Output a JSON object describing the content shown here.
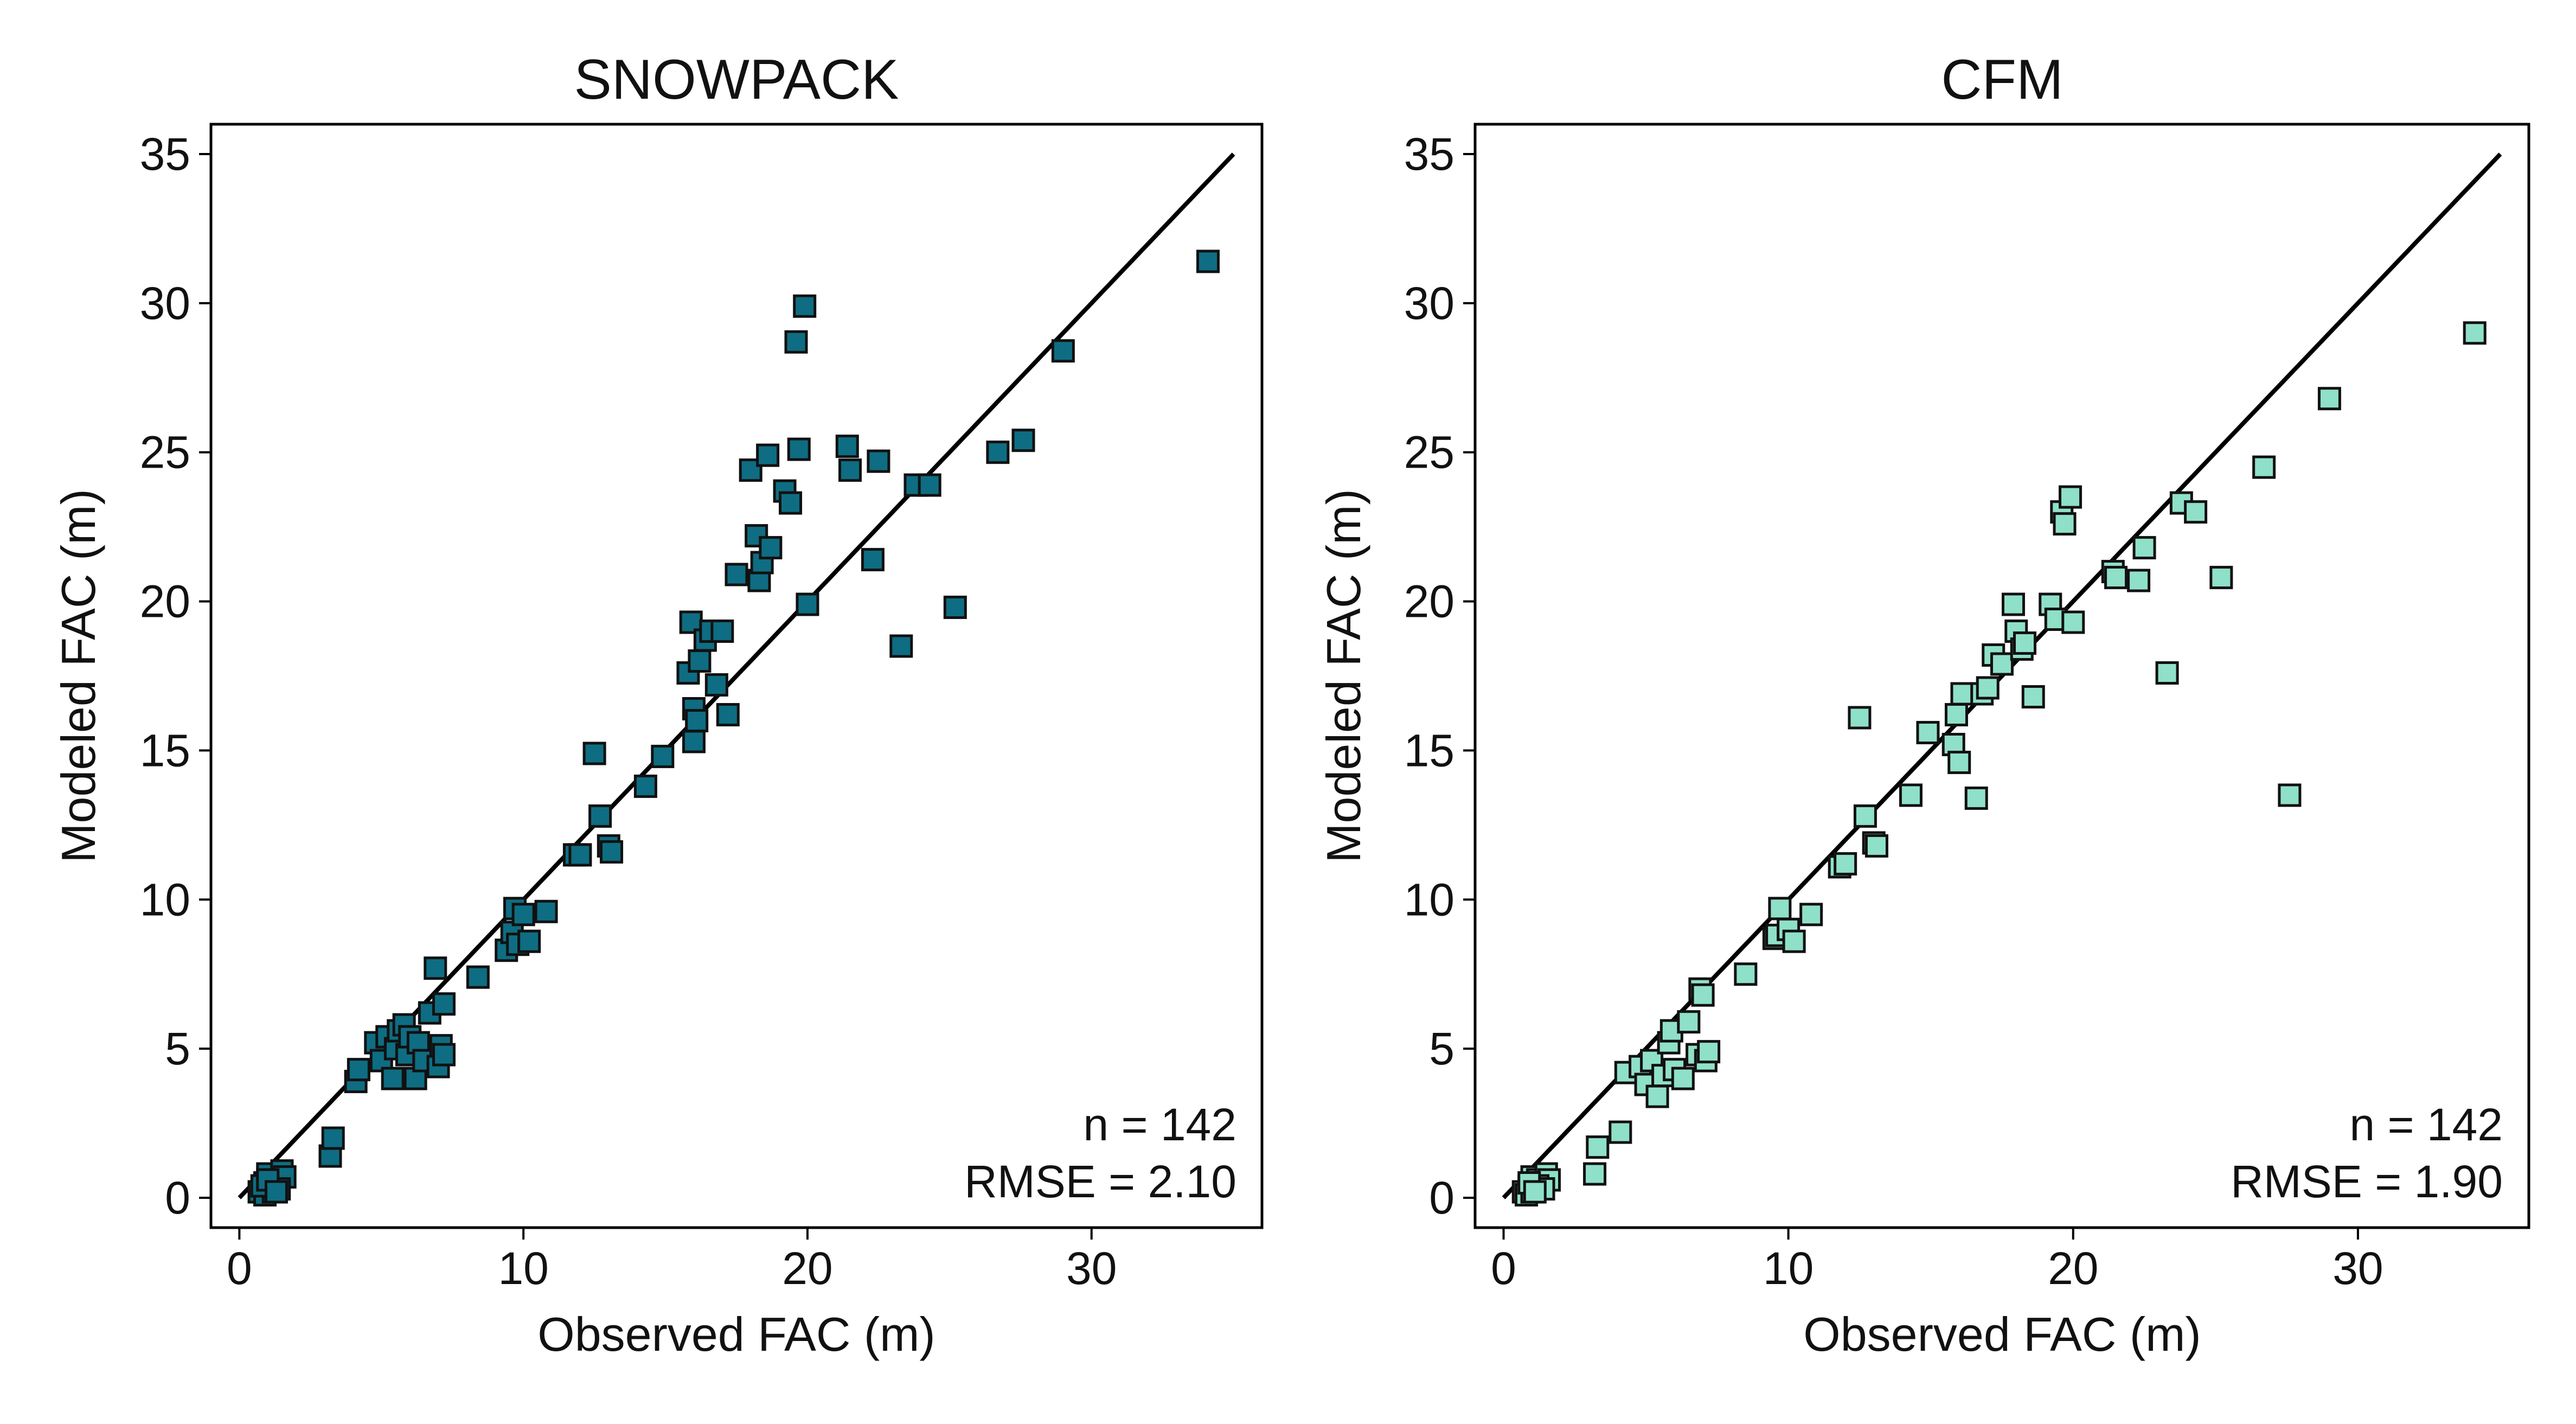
{
  "chart_data": [
    {
      "type": "scatter",
      "title": "SNOWPACK",
      "xlabel": "Observed FAC (m)",
      "ylabel": "Modeled FAC (m)",
      "xlim": [
        -1,
        36
      ],
      "ylim": [
        -1,
        36
      ],
      "xticks": [
        0,
        10,
        20,
        30
      ],
      "yticks": [
        0,
        5,
        10,
        15,
        20,
        25,
        30,
        35
      ],
      "grid": false,
      "legend": "none",
      "reference_line": {
        "from": [
          0,
          0
        ],
        "to": [
          35,
          35
        ],
        "color": "#000000"
      },
      "marker": "square",
      "marker_color": "#0e6d82",
      "annotations": {
        "n": "n = 142",
        "rmse": "RMSE = 2.10"
      },
      "series": [
        {
          "x": [
            0.7,
            0.9,
            1.0,
            1.1,
            1.2,
            1.3,
            1.5,
            1.6,
            0.9,
            1.2,
            1.4,
            0.8,
            1.0,
            1.3,
            3.2,
            3.3,
            4.1,
            4.2,
            4.8,
            5.0,
            5.2,
            5.4,
            5.5,
            5.6,
            5.8,
            5.9,
            6.0,
            6.2,
            6.3,
            6.5,
            6.7,
            6.9,
            7.0,
            7.1,
            7.2,
            7.2,
            8.4,
            9.4,
            9.6,
            9.7,
            9.8,
            10.0,
            10.2,
            10.8,
            11.8,
            12.0,
            12.5,
            12.7,
            13.0,
            13.1,
            14.3,
            14.9,
            15.8,
            15.9,
            16.0,
            16.0,
            16.1,
            16.2,
            16.4,
            16.6,
            16.8,
            17.0,
            17.2,
            17.5,
            18.0,
            18.2,
            18.3,
            18.4,
            18.6,
            18.7,
            19.2,
            19.4,
            19.6,
            19.7,
            19.9,
            20.0,
            21.4,
            21.5,
            22.3,
            22.5,
            23.3,
            23.8,
            24.3,
            25.2,
            26.7,
            27.6,
            29.0,
            34.1
          ],
          "y": [
            0.2,
            0.5,
            0.8,
            0.3,
            0.6,
            0.4,
            0.9,
            0.7,
            0.1,
            0.2,
            0.3,
            0.4,
            0.6,
            0.2,
            1.4,
            2.0,
            3.9,
            4.3,
            5.2,
            4.6,
            5.4,
            4.0,
            5.0,
            5.6,
            5.8,
            4.8,
            5.4,
            4.0,
            5.2,
            4.6,
            6.2,
            7.7,
            4.4,
            5.1,
            6.5,
            4.8,
            7.4,
            8.3,
            8.9,
            9.7,
            8.5,
            9.5,
            8.6,
            9.6,
            11.5,
            11.5,
            14.9,
            12.8,
            11.8,
            11.6,
            13.8,
            14.8,
            17.6,
            19.3,
            16.4,
            15.3,
            16.0,
            18.0,
            18.7,
            19.0,
            17.2,
            19.0,
            16.2,
            20.9,
            24.4,
            22.2,
            20.7,
            21.3,
            24.9,
            21.8,
            23.7,
            23.3,
            28.7,
            25.1,
            29.9,
            19.9,
            25.2,
            24.4,
            21.4,
            24.7,
            18.5,
            23.9,
            23.9,
            19.8,
            25.0,
            25.4,
            28.4,
            31.4
          ]
        }
      ]
    },
    {
      "type": "scatter",
      "title": "CFM",
      "xlabel": "Observed FAC (m)",
      "ylabel": "Modeled FAC (m)",
      "xlim": [
        -1,
        36
      ],
      "ylim": [
        -1,
        36
      ],
      "xticks": [
        0,
        10,
        20,
        30
      ],
      "yticks": [
        0,
        5,
        10,
        15,
        20,
        25,
        30,
        35
      ],
      "grid": false,
      "legend": "none",
      "reference_line": {
        "from": [
          0,
          0
        ],
        "to": [
          35,
          35
        ],
        "color": "#000000"
      },
      "marker": "square",
      "marker_color": "#8fe0c8",
      "annotations": {
        "n": "n = 142",
        "rmse": "RMSE = 1.90"
      },
      "series": [
        {
          "x": [
            0.7,
            0.9,
            1.0,
            1.1,
            1.2,
            1.3,
            1.5,
            1.6,
            0.8,
            1.0,
            1.2,
            1.4,
            0.9,
            1.1,
            3.2,
            3.3,
            4.1,
            4.3,
            4.8,
            5.0,
            5.2,
            5.4,
            5.6,
            5.8,
            5.9,
            6.0,
            6.3,
            6.5,
            6.8,
            6.9,
            7.0,
            7.1,
            7.2,
            8.5,
            9.5,
            9.6,
            9.7,
            10.0,
            10.2,
            10.8,
            11.8,
            12.0,
            12.5,
            12.7,
            13.0,
            13.1,
            14.3,
            14.9,
            15.8,
            15.9,
            16.0,
            16.1,
            16.6,
            16.8,
            17.0,
            17.2,
            17.5,
            17.9,
            18.0,
            18.2,
            18.3,
            18.6,
            19.2,
            19.4,
            19.6,
            19.7,
            19.9,
            20.0,
            21.4,
            21.5,
            22.3,
            22.5,
            23.3,
            23.8,
            24.3,
            25.2,
            26.7,
            27.6,
            29.0,
            34.1
          ],
          "y": [
            0.2,
            0.4,
            0.7,
            0.3,
            0.6,
            0.5,
            0.8,
            0.6,
            0.1,
            0.2,
            0.4,
            0.3,
            0.5,
            0.2,
            0.8,
            1.7,
            2.2,
            4.2,
            4.4,
            3.8,
            4.6,
            3.4,
            4.1,
            5.2,
            5.6,
            4.3,
            4.0,
            5.9,
            4.8,
            7.0,
            6.8,
            4.6,
            4.9,
            7.5,
            8.7,
            8.8,
            9.7,
            9.0,
            8.6,
            9.5,
            11.1,
            11.2,
            16.1,
            12.8,
            11.9,
            11.8,
            13.5,
            15.6,
            15.2,
            16.2,
            14.6,
            16.9,
            13.4,
            16.9,
            17.1,
            18.2,
            17.9,
            19.9,
            19.0,
            18.4,
            18.6,
            16.8,
            19.9,
            19.4,
            23.0,
            22.6,
            23.5,
            19.3,
            21.0,
            20.8,
            20.7,
            21.8,
            17.6,
            23.3,
            23.0,
            20.8,
            24.5,
            13.5,
            26.8,
            29.0
          ]
        }
      ]
    }
  ]
}
